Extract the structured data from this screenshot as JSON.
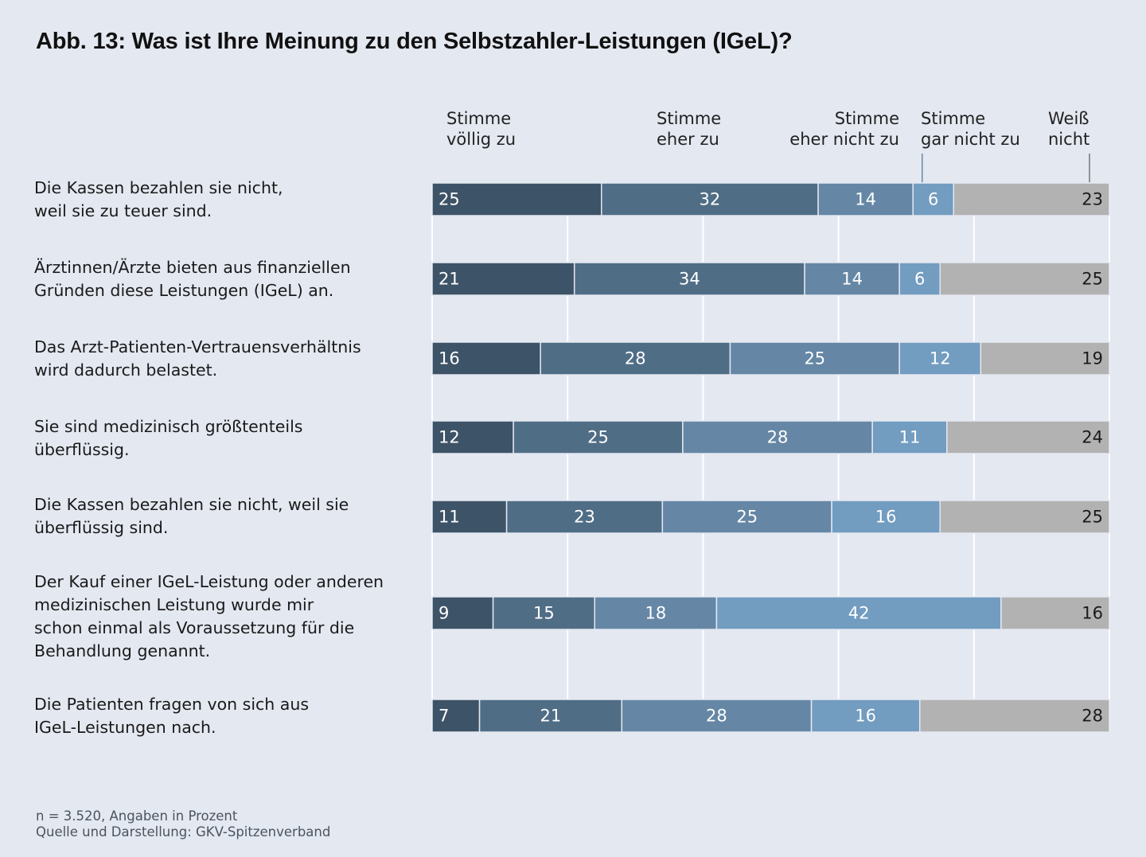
{
  "chart_data": {
    "type": "bar",
    "orientation": "horizontal",
    "stacked": true,
    "title": "Abb. 13: Was ist Ihre Meinung zu den Selbstzahler-Leistungen (IGeL)?",
    "xlabel": "",
    "ylabel": "",
    "xlim": [
      0,
      100
    ],
    "grid": true,
    "legend_position": "top",
    "categories": [
      "Die Kassen bezahlen sie nicht,\nweil sie zu teuer sind.",
      "Ärztinnen/Ärzte bieten aus finanziellen\nGründen diese Leistungen (IGeL) an.",
      "Das Arzt-Patienten-Vertrauensverhältnis\nwird dadurch belastet.",
      "Sie sind medizinisch größtenteils\nüberflüssig.",
      "Die Kassen bezahlen sie nicht, weil sie\nüberflüssig sind.",
      "Der Kauf einer IGeL-Leistung oder anderen\nmedizinischen Leistung wurde mir\nschon einmal als Voraussetzung für die\nBehandlung genannt.",
      "Die Patienten fragen von sich aus\nIGeL-Leistungen nach."
    ],
    "series": [
      {
        "name": "Stimme völlig zu",
        "legend_label": "Stimme\nvöllig zu",
        "color": "#3d5367",
        "text_color": "#ffffff",
        "values": [
          25,
          21,
          16,
          12,
          11,
          9,
          7
        ]
      },
      {
        "name": "Stimme eher zu",
        "legend_label": "Stimme\neher zu",
        "color": "#506d86",
        "text_color": "#ffffff",
        "values": [
          32,
          34,
          28,
          25,
          23,
          15,
          21
        ]
      },
      {
        "name": "Stimme eher nicht zu",
        "legend_label": "Stimme\neher nicht zu",
        "color": "#6587a5",
        "text_color": "#ffffff",
        "values": [
          14,
          14,
          25,
          28,
          25,
          18,
          28
        ]
      },
      {
        "name": "Stimme gar nicht zu",
        "legend_label": "Stimme\ngar nicht zu",
        "color": "#729cc0",
        "text_color": "#ffffff",
        "values": [
          6,
          6,
          12,
          11,
          16,
          42,
          16
        ]
      },
      {
        "name": "Weiß nicht",
        "legend_label": "Weiß\nnicht",
        "color": "#b2b2b2",
        "text_color": "#1a1a1a",
        "values": [
          23,
          25,
          19,
          24,
          25,
          16,
          28
        ]
      }
    ],
    "gridlines_at": [
      0,
      20,
      40,
      60,
      80,
      100
    ]
  },
  "footnotes": {
    "sample": "n = 3.520, Angaben in Prozent",
    "source": "Quelle und Darstellung: GKV-Spitzenverband"
  }
}
